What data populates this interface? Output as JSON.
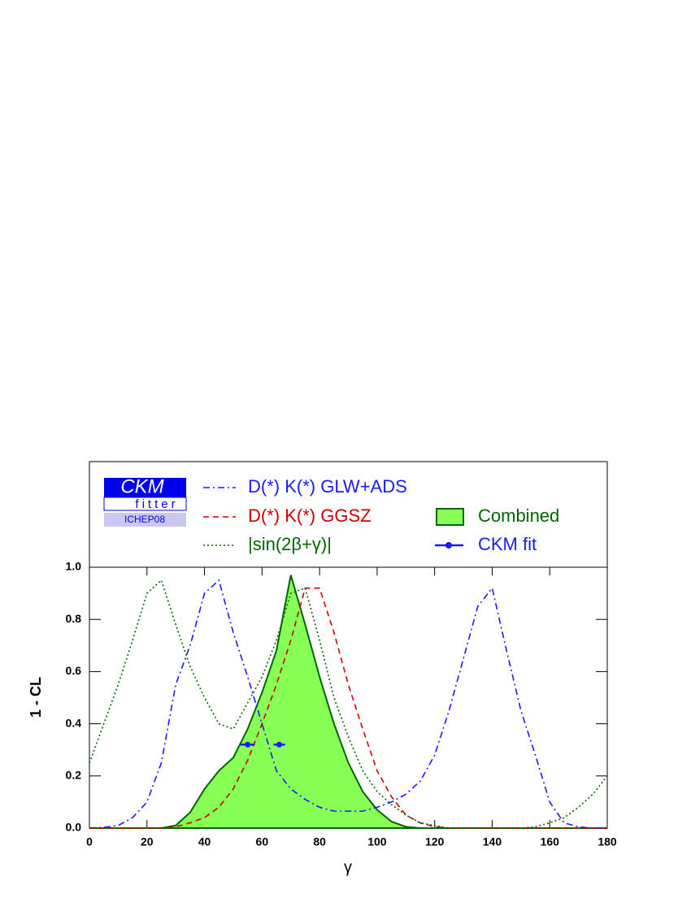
{
  "chart_data": {
    "type": "line",
    "xlabel": "γ",
    "ylabel": "1 - CL",
    "logo": {
      "title": "CKM",
      "subtitle": "fitter",
      "tag": "ICHEP08"
    },
    "xlim": [
      0,
      180
    ],
    "ylim": [
      0,
      1
    ],
    "xticks": [
      0,
      20,
      40,
      60,
      80,
      100,
      120,
      140,
      160,
      180
    ],
    "yticks": [
      {
        "value": 0,
        "label": "0.0"
      },
      0.2,
      0.4,
      0.6,
      0.8,
      {
        "value": 1,
        "label": "1.0"
      }
    ],
    "x": [
      0,
      5,
      10,
      15,
      20,
      25,
      30,
      35,
      40,
      45,
      50,
      55,
      60,
      65,
      70,
      75,
      80,
      85,
      90,
      95,
      100,
      105,
      110,
      115,
      120,
      125,
      130,
      135,
      140,
      145,
      150,
      155,
      160,
      165,
      170,
      175,
      180
    ],
    "series": [
      {
        "name": "Combined",
        "style": "fill",
        "color": "#006600",
        "fill": "#88ff55",
        "values": [
          0,
          0,
          0,
          0,
          0,
          0,
          0.01,
          0.06,
          0.15,
          0.22,
          0.27,
          0.38,
          0.52,
          0.68,
          0.97,
          0.78,
          0.58,
          0.4,
          0.25,
          0.14,
          0.07,
          0.025,
          0.005,
          0,
          0,
          0,
          0,
          0,
          0,
          0,
          0,
          0,
          0,
          0,
          0,
          0,
          0
        ]
      },
      {
        "name": "D(*) K(*) GLW+ADS",
        "style": "dashdot",
        "color": "#1a1aff",
        "values": [
          0,
          0.003,
          0.01,
          0.04,
          0.1,
          0.25,
          0.55,
          0.7,
          0.9,
          0.95,
          0.75,
          0.58,
          0.4,
          0.22,
          0.15,
          0.11,
          0.08,
          0.065,
          0.065,
          0.065,
          0.08,
          0.1,
          0.13,
          0.18,
          0.28,
          0.45,
          0.65,
          0.85,
          0.92,
          0.68,
          0.45,
          0.28,
          0.1,
          0.02,
          0.005,
          0,
          0
        ]
      },
      {
        "name": "D(*) K(*) GGSZ",
        "style": "dashed",
        "color": "#cc0000",
        "values": [
          0,
          0,
          0,
          0,
          0,
          0,
          0.005,
          0.02,
          0.04,
          0.08,
          0.15,
          0.26,
          0.4,
          0.55,
          0.72,
          0.92,
          0.92,
          0.75,
          0.55,
          0.38,
          0.22,
          0.12,
          0.05,
          0.02,
          0.005,
          0,
          0,
          0,
          0,
          0,
          0,
          0,
          0,
          0,
          0,
          0,
          0
        ]
      },
      {
        "name": "|sin(2β+γ)|",
        "style": "dotted",
        "color": "#006600",
        "values": [
          0.25,
          0.4,
          0.55,
          0.72,
          0.9,
          0.95,
          0.78,
          0.62,
          0.5,
          0.4,
          0.38,
          0.48,
          0.58,
          0.72,
          0.9,
          0.92,
          0.72,
          0.5,
          0.35,
          0.22,
          0.14,
          0.09,
          0.05,
          0.02,
          0.01,
          0,
          0,
          0,
          0,
          0,
          0,
          0.005,
          0.02,
          0.04,
          0.08,
          0.13,
          0.2
        ]
      }
    ],
    "ckm_fit": {
      "name": "CKM fit",
      "color": "#1a1aff",
      "x": [
        55,
        66
      ],
      "values": [
        0.32,
        0.32
      ],
      "xerr": [
        2.5,
        2
      ]
    }
  }
}
